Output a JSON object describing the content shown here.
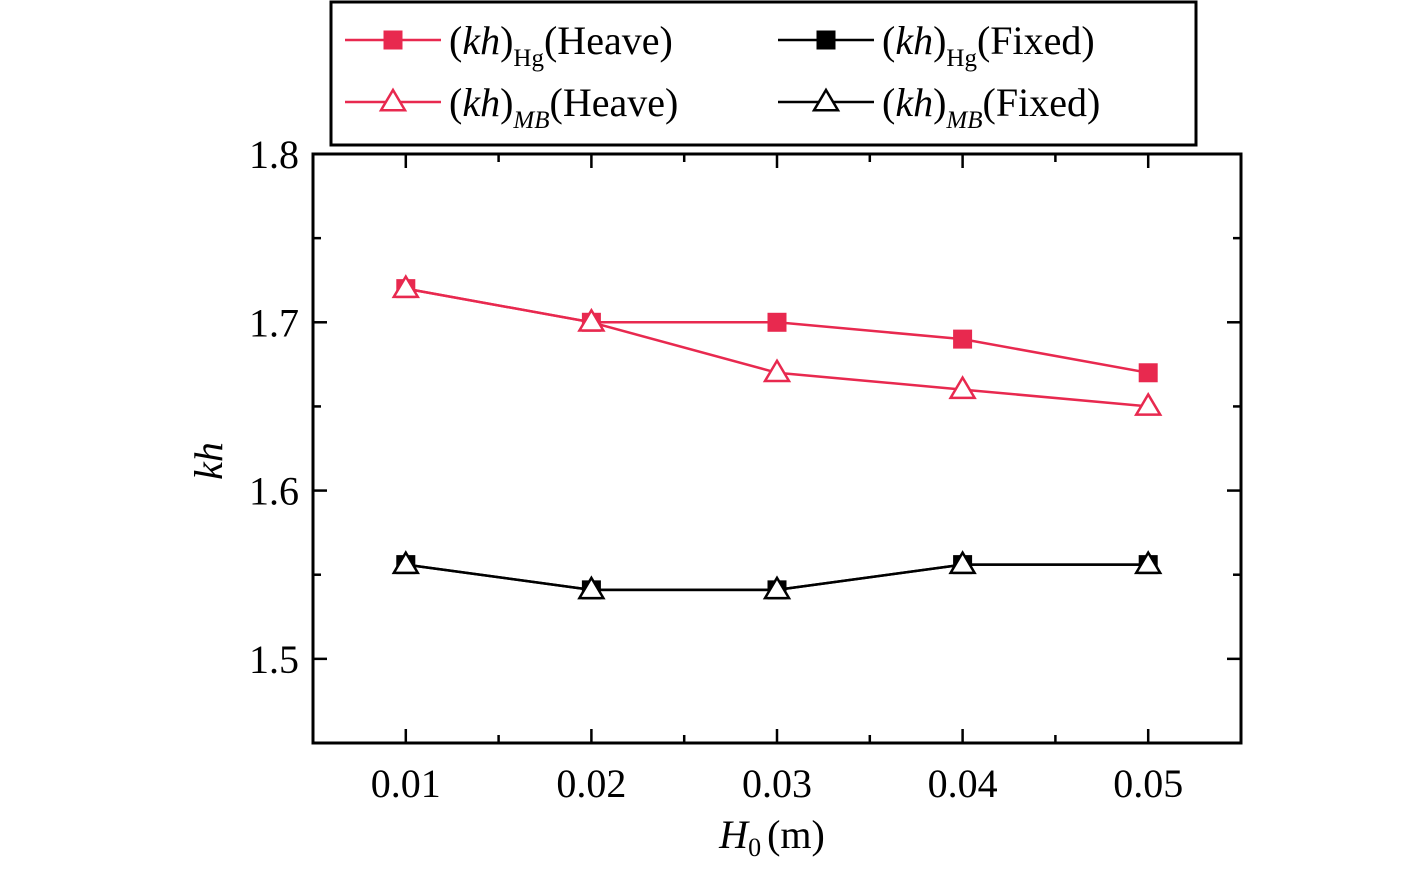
{
  "colors": {
    "red": "#e8294f",
    "black": "#000000"
  },
  "chart_data": {
    "type": "line",
    "x": [
      0.01,
      0.02,
      0.03,
      0.04,
      0.05
    ],
    "xtick_labels": [
      "0.01",
      "0.02",
      "0.03",
      "0.04",
      "0.05"
    ],
    "ytick_labels": [
      "1.5",
      "1.6",
      "1.7",
      "1.8"
    ],
    "xlim": [
      0.005,
      0.055
    ],
    "ylim": [
      1.45,
      1.8
    ],
    "xlabel": {
      "main": "H",
      "sub": "0",
      "unit": "(m)"
    },
    "ylabel": "kh",
    "grid": false,
    "legend_position": "top",
    "series": [
      {
        "name": "(kh)Hg(Heave)",
        "values": [
          1.72,
          1.7,
          1.7,
          1.69,
          1.67
        ],
        "color": "#e8294f",
        "marker": "square-filled"
      },
      {
        "name": "(kh)MB(Heave)",
        "values": [
          1.72,
          1.7,
          1.67,
          1.66,
          1.65
        ],
        "color": "#e8294f",
        "marker": "triangle-open"
      },
      {
        "name": "(kh)Hg(Fixed)",
        "values": [
          1.556,
          1.541,
          1.541,
          1.556,
          1.556
        ],
        "color": "#000000",
        "marker": "square-filled"
      },
      {
        "name": "(kh)MB(Fixed)",
        "values": [
          1.556,
          1.541,
          1.541,
          1.556,
          1.556
        ],
        "color": "#000000",
        "marker": "triangle-open"
      }
    ],
    "legend": [
      {
        "paren_main": "(kh)",
        "sub": "Hg",
        "suffix": "(Heave)"
      },
      {
        "paren_main": "(kh)",
        "sub": "MB",
        "suffix": "(Heave)"
      },
      {
        "paren_main": "(kh)",
        "sub": "Hg",
        "suffix": "(Fixed)"
      },
      {
        "paren_main": "(kh)",
        "sub": "MB",
        "suffix": "(Fixed)"
      }
    ]
  }
}
